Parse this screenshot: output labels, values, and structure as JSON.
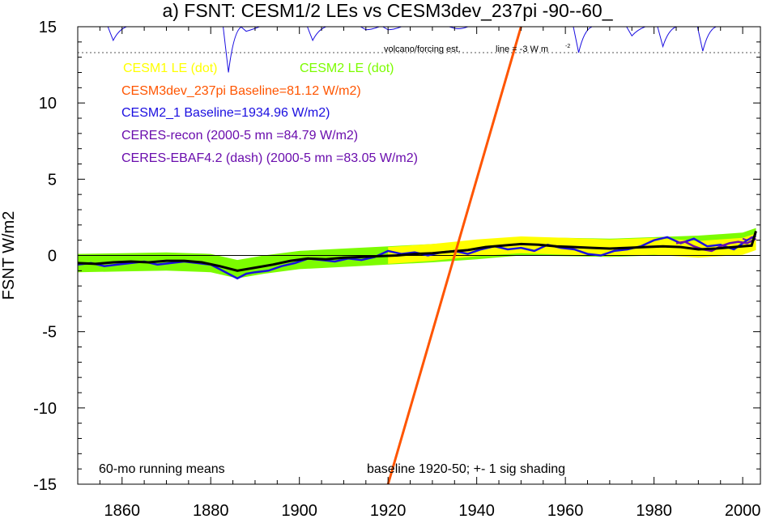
{
  "chart_data": {
    "type": "line",
    "title": "a) FSNT: CESM1/2 LEs vs CESM3dev_237pi -90--60_",
    "ylabel": "FSNT W/m2",
    "xlim": [
      1850,
      2004
    ],
    "ylim": [
      -15,
      15
    ],
    "xticks": [
      1860,
      1880,
      1900,
      1920,
      1940,
      1960,
      1980,
      2000
    ],
    "yticks": [
      15,
      10,
      5,
      0,
      -5,
      -10,
      -15
    ],
    "yticklabels": [
      "15",
      "10",
      "5",
      "0",
      "-5",
      "-10",
      "-15"
    ],
    "grid": false,
    "legend": {
      "cesm1": "CESM1 LE (dot)",
      "cesm2": "CESM2 LE (dot)",
      "cesm3": "CESM3dev_237pi Baseline=81.12 W/m2)",
      "cesm2_1": "CESM2_1 Baseline=1934.96 W/m2)",
      "ceres_recon": "CERES-recon (2000-5 mn =84.79 W/m2)",
      "ceres_ebaf": "CERES-EBAF4.2 (dash) (2000-5 mn =83.05 W/m2)"
    },
    "annotations": {
      "volcano": "volcano/forcing est.",
      "line_note": "line = -3 W m",
      "line_note_sup": "-2",
      "running": "60-mo running means",
      "baseline": "baseline 1920-50; +- 1 sig shading"
    },
    "colors": {
      "cesm1": "#ffff00",
      "cesm2": "#7cfc00",
      "cesm3": "#ff5500",
      "cesm2_1": "#1a0ee0",
      "ceres_recon": "#6a0dad",
      "ceres_ebaf": "#6a0dad",
      "ensemble_mean": "#000000",
      "volcano": "#1a0ee0"
    },
    "series": [
      {
        "name": "CESM3dev_237pi Baseline=81.12 W/m2)",
        "x": [
          1920,
          1950
        ],
        "y": [
          -15,
          15
        ]
      },
      {
        "name": "CESM2_1 Baseline=1934.96 W/m2)",
        "x": [
          1850,
          1853,
          1856,
          1859,
          1862,
          1865,
          1868,
          1871,
          1874,
          1877,
          1880,
          1882,
          1884,
          1886,
          1888,
          1890,
          1893,
          1896,
          1899,
          1902,
          1905,
          1908,
          1911,
          1914,
          1917,
          1920,
          1923,
          1926,
          1929,
          1932,
          1935,
          1938,
          1941,
          1944,
          1947,
          1950,
          1953,
          1956,
          1959,
          1962,
          1965,
          1968,
          1971,
          1974,
          1977,
          1980,
          1983,
          1986,
          1989,
          1992,
          1995,
          1998,
          2001,
          2003
        ],
        "y": [
          -0.6,
          -0.5,
          -0.7,
          -0.6,
          -0.5,
          -0.4,
          -0.6,
          -0.5,
          -0.4,
          -0.5,
          -0.6,
          -0.9,
          -1.2,
          -1.5,
          -1.2,
          -1.1,
          -1.0,
          -0.7,
          -0.5,
          -0.2,
          -0.3,
          -0.4,
          -0.2,
          -0.3,
          -0.1,
          0.3,
          0.1,
          0.2,
          0.0,
          0.2,
          0.3,
          0.1,
          0.4,
          0.6,
          0.4,
          0.5,
          0.3,
          0.7,
          0.5,
          0.4,
          0.1,
          0.0,
          0.3,
          0.4,
          0.6,
          1.0,
          1.2,
          0.8,
          1.1,
          0.6,
          0.7,
          0.4,
          1.0,
          1.3
        ]
      },
      {
        "name": "CERES-recon (2000-5 mn =84.79 W/m2)",
        "x": [
          1985,
          1987,
          1989,
          1991,
          1993,
          1995,
          1997,
          1999,
          2001,
          2003
        ],
        "y": [
          0.8,
          0.9,
          0.6,
          0.4,
          0.3,
          0.6,
          0.8,
          0.9,
          0.8,
          1.1
        ]
      },
      {
        "name": "CERES-EBAF4.2 (dash) (2000-5 mn =83.05 W/m2)",
        "x": [
          2000,
          2001,
          2002,
          2003
        ],
        "y": [
          1.1,
          1.0,
          1.2,
          1.4
        ]
      }
    ],
    "ensemble_mean": {
      "x": [
        1850,
        1854,
        1858,
        1862,
        1866,
        1870,
        1874,
        1878,
        1882,
        1886,
        1890,
        1894,
        1898,
        1902,
        1906,
        1910,
        1914,
        1918,
        1922,
        1926,
        1930,
        1934,
        1938,
        1942,
        1946,
        1950,
        1954,
        1958,
        1962,
        1966,
        1970,
        1974,
        1978,
        1982,
        1986,
        1990,
        1994,
        1998,
        2002,
        2003
      ],
      "y": [
        -0.5,
        -0.55,
        -0.45,
        -0.4,
        -0.45,
        -0.35,
        -0.35,
        -0.45,
        -0.7,
        -1.0,
        -0.8,
        -0.6,
        -0.35,
        -0.2,
        -0.25,
        -0.15,
        -0.1,
        -0.05,
        0.0,
        0.1,
        0.15,
        0.25,
        0.35,
        0.55,
        0.65,
        0.75,
        0.7,
        0.6,
        0.55,
        0.5,
        0.45,
        0.5,
        0.55,
        0.6,
        0.55,
        0.4,
        0.45,
        0.55,
        0.65,
        1.6
      ]
    },
    "cesm1_band": {
      "x": [
        1920,
        1930,
        1940,
        1950,
        1960,
        1970,
        1980,
        1990,
        2000,
        2003
      ],
      "y": [
        0.0,
        0.2,
        0.5,
        0.7,
        0.6,
        0.5,
        0.6,
        0.4,
        0.6,
        0.9
      ],
      "half_width": 0.55
    },
    "cesm2_band": {
      "x": [
        1850,
        1860,
        1870,
        1880,
        1886,
        1892,
        1900,
        1910,
        1920,
        1930,
        1940,
        1950,
        1960,
        1970,
        1980,
        1990,
        2000,
        2003
      ],
      "y": [
        -0.5,
        -0.45,
        -0.4,
        -0.5,
        -0.9,
        -0.6,
        -0.3,
        -0.15,
        0.0,
        0.15,
        0.35,
        0.6,
        0.55,
        0.5,
        0.6,
        0.7,
        0.9,
        1.2
      ],
      "half_width": 0.6
    },
    "volcano": {
      "baseline": 15,
      "ref_line": 13.3,
      "events": [
        [
          1858,
          14.1
        ],
        [
          1884,
          12.0
        ],
        [
          1888,
          14.7
        ],
        [
          1903,
          14.1
        ],
        [
          1915,
          14.8
        ],
        [
          1920,
          14.8
        ],
        [
          1935,
          14.9
        ],
        [
          1963,
          13.3
        ],
        [
          1975,
          14.4
        ],
        [
          1982,
          13.7
        ],
        [
          1991,
          13.4
        ]
      ]
    }
  }
}
